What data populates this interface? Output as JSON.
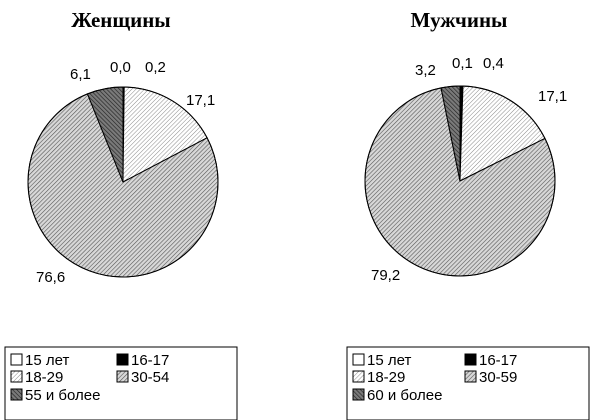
{
  "chart_data": [
    {
      "type": "pie",
      "title": "Женщины",
      "categories": [
        "15 лет",
        "16-17",
        "18-29",
        "30-54",
        "55 и более"
      ],
      "values": [
        0.0,
        0.2,
        17.1,
        76.6,
        6.1
      ],
      "value_labels": [
        "0,0",
        "0,2",
        "17,1",
        "76,6",
        "6,1"
      ],
      "legend": [
        "15 лет",
        "16-17",
        "18-29",
        "30-54",
        "55 и более"
      ],
      "legend_position": "bottom"
    },
    {
      "type": "pie",
      "title": "Мужчины",
      "categories": [
        "15 лет",
        "16-17",
        "18-29",
        "30-59",
        "60 и более"
      ],
      "values": [
        0.1,
        0.4,
        17.1,
        79.2,
        3.2
      ],
      "value_labels": [
        "0,1",
        "0,4",
        "17,1",
        "79,2",
        "3,2"
      ],
      "legend": [
        "15 лет",
        "16-17",
        "18-29",
        "30-59",
        "60 и более"
      ],
      "legend_position": "bottom"
    }
  ],
  "fills": [
    "#ffffff",
    "#000000",
    "hatch-light",
    "hatch-medium",
    "hatch-dark"
  ]
}
